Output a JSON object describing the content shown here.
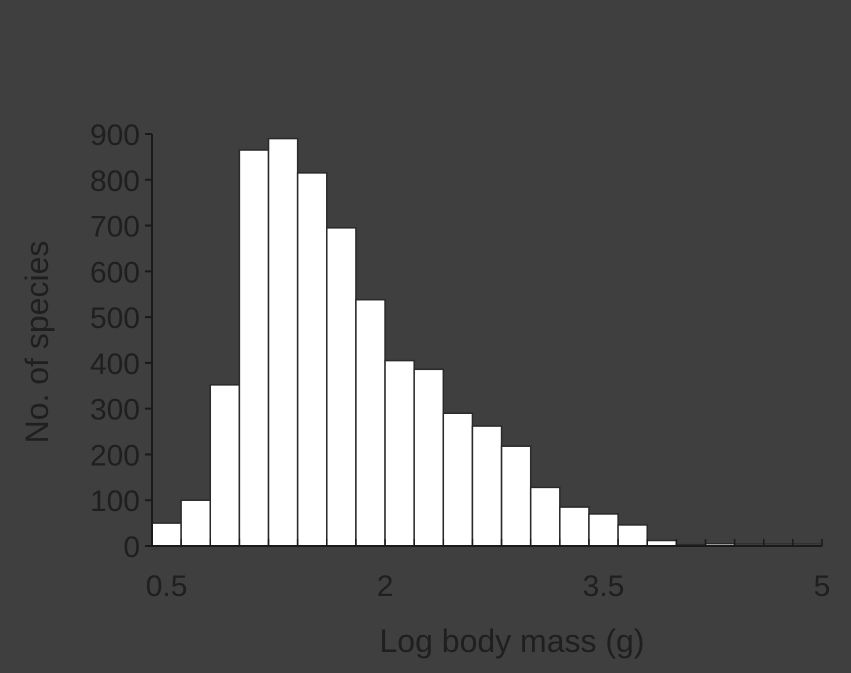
{
  "chart_data": {
    "type": "bar",
    "title": "",
    "xlabel": "Log body mass (g)",
    "ylabel": "No. of species",
    "x_ticks": [
      0.5,
      2,
      3.5,
      5
    ],
    "x_tick_labels": [
      "0.5",
      "2",
      "3.5",
      "5"
    ],
    "y_ticks": [
      0,
      100,
      200,
      300,
      400,
      500,
      600,
      700,
      800,
      900
    ],
    "y_tick_labels": [
      "0",
      "100",
      "200",
      "300",
      "400",
      "500",
      "600",
      "700",
      "800",
      "900"
    ],
    "xlim": [
      0.4,
      5.0
    ],
    "ylim": [
      0,
      900
    ],
    "bin_width": 0.2,
    "bin_starts": [
      0.4,
      0.6,
      0.8,
      1.0,
      1.2,
      1.4,
      1.6,
      1.8,
      2.0,
      2.2,
      2.4,
      2.6,
      2.8,
      3.0,
      3.2,
      3.4,
      3.6,
      3.8,
      4.0,
      4.2,
      4.4,
      4.6,
      4.8
    ],
    "values": [
      50,
      100,
      352,
      865,
      890,
      815,
      695,
      538,
      405,
      386,
      290,
      262,
      218,
      128,
      85,
      70,
      46,
      12,
      3,
      5,
      4,
      4,
      4
    ],
    "grid": false,
    "legend": "none",
    "colors": {
      "background": "#3f3f3f",
      "bar_fill": "#ffffff",
      "bar_stroke": "#2a2a2a",
      "axis": "#1a1a1a",
      "text": "#1f1f1f"
    }
  }
}
